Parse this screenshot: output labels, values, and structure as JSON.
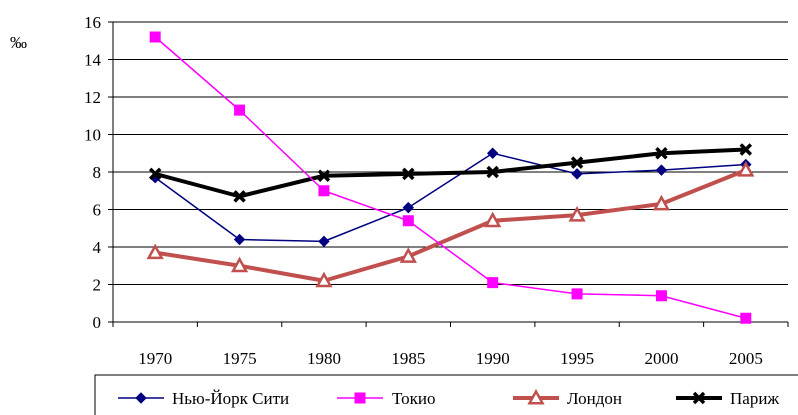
{
  "chart_data": {
    "type": "line",
    "title": "",
    "xlabel": "",
    "ylabel": "‰",
    "ylim": [
      0,
      16
    ],
    "y_ticks": [
      0,
      2,
      4,
      6,
      8,
      10,
      12,
      14,
      16
    ],
    "categories": [
      "1970",
      "1975",
      "1980",
      "1985",
      "1990",
      "1995",
      "2000",
      "2005"
    ],
    "grid": "horizontal",
    "legend_position": "bottom",
    "series": [
      {
        "name": "Нью-Йорк Сити",
        "values": [
          7.7,
          4.4,
          4.3,
          6.1,
          9.0,
          7.9,
          8.1,
          8.4
        ],
        "color": "#000080",
        "marker": "diamond",
        "line_style": "thin"
      },
      {
        "name": "Токио",
        "values": [
          15.2,
          11.3,
          7.0,
          5.4,
          2.1,
          1.5,
          1.4,
          0.2
        ],
        "color": "#FF00FF",
        "marker": "square",
        "line_style": "thin"
      },
      {
        "name": "Лондон",
        "values": [
          3.7,
          3.0,
          2.2,
          3.5,
          5.4,
          5.7,
          6.3,
          8.1
        ],
        "color": "#C0504D",
        "marker": "triangle",
        "line_style": "thick"
      },
      {
        "name": "Париж",
        "values": [
          7.9,
          6.7,
          7.8,
          7.9,
          8.0,
          8.5,
          9.0,
          9.2
        ],
        "color": "#000000",
        "marker": "x",
        "line_style": "thick"
      }
    ]
  }
}
